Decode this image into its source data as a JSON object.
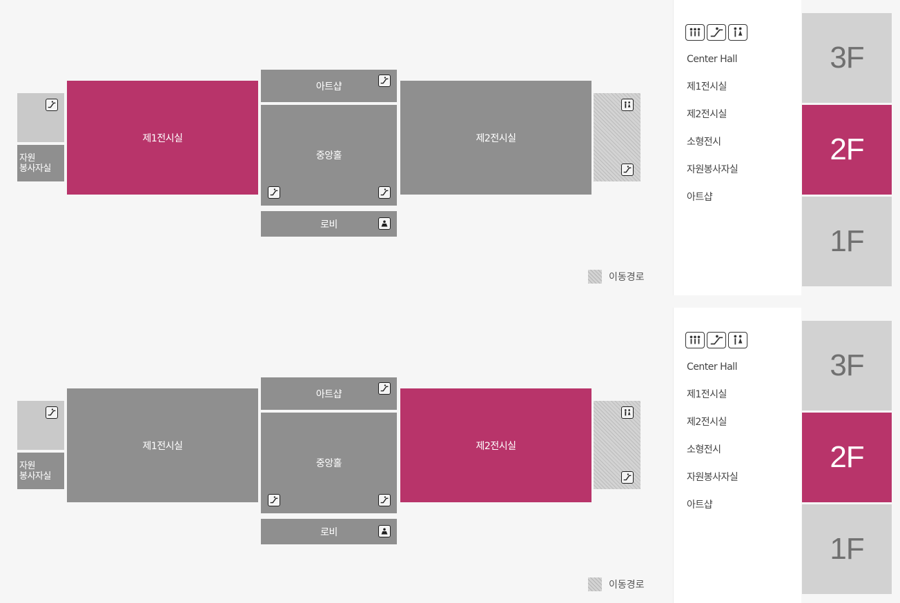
{
  "panels": [
    {
      "rooms": {
        "exhibit1": "제1전시실",
        "volunteer": "자원\n봉사자실",
        "artshop": "아트샵",
        "central_hall": "중앙홀",
        "lobby": "로비",
        "exhibit2": "제2전시실"
      },
      "active_room": "exhibit1",
      "legend": "이동경로",
      "floor_info": [
        "Center Hall",
        "제1전시실",
        "제2전시실",
        "소형전시",
        "자원봉사자실",
        "아트샵"
      ],
      "floors": [
        "3F",
        "2F",
        "1F"
      ],
      "active_floor": "2F"
    },
    {
      "rooms": {
        "exhibit1": "제1전시실",
        "volunteer": "자원\n봉사자실",
        "artshop": "아트샵",
        "central_hall": "중앙홀",
        "lobby": "로비",
        "exhibit2": "제2전시실"
      },
      "active_room": "exhibit2",
      "legend": "이동경로",
      "floor_info": [
        "Center Hall",
        "제1전시실",
        "제2전시실",
        "소형전시",
        "자원봉사자실",
        "아트샵"
      ],
      "floors": [
        "3F",
        "2F",
        "1F"
      ],
      "active_floor": "2F"
    }
  ],
  "icons": {
    "escalator": "escalator-icon",
    "restroom": "restroom-icon",
    "info_desk": "info-desk-icon"
  },
  "colors": {
    "active": "#b8346a",
    "room": "#8f8f8f",
    "floor_inactive": "#d2d2d2",
    "background": "#f6f6f6"
  }
}
